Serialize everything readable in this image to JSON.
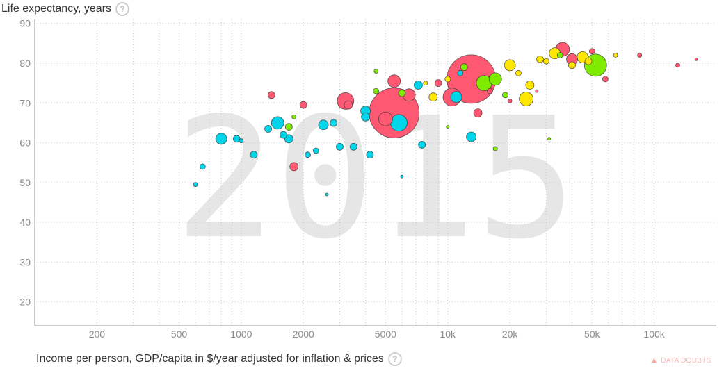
{
  "y_axis": {
    "title": "Life expectancy, years",
    "help_icon": "question-circle-icon"
  },
  "x_axis": {
    "title": "Income per person, GDP/capita in $/year adjusted for inflation & prices",
    "help_icon": "question-circle-icon"
  },
  "data_doubts": {
    "label": "DATA DOUBTS",
    "icon": "warning-triangle-icon"
  },
  "chart_data": {
    "type": "scatter",
    "title": "",
    "year": "2015",
    "xlabel": "Income per person, GDP/capita in $/year adjusted for inflation & prices",
    "ylabel": "Life expectancy, years",
    "xscale": "log",
    "xlim": [
      100,
      200000
    ],
    "ylim": [
      14,
      91
    ],
    "x_ticks": [
      200,
      500,
      1000,
      2000,
      5000,
      10000,
      20000,
      50000,
      100000
    ],
    "x_tick_labels": [
      "200",
      "500",
      "1000",
      "2000",
      "5000",
      "10k",
      "20k",
      "50k",
      "100k"
    ],
    "y_ticks": [
      20,
      30,
      40,
      50,
      60,
      70,
      80,
      90
    ],
    "grid": true,
    "colors": {
      "cyan": "#00d5e9",
      "red": "#ff5872",
      "green": "#7feb00",
      "yellow": "#ffe700"
    },
    "points": [
      {
        "x": 5500,
        "y": 67.5,
        "r": 36,
        "color": "#ff5872"
      },
      {
        "x": 13000,
        "y": 76,
        "r": 35,
        "color": "#ff5872"
      },
      {
        "x": 52000,
        "y": 79.5,
        "r": 16,
        "color": "#7feb00"
      },
      {
        "x": 5800,
        "y": 65,
        "r": 12,
        "color": "#00d5e9"
      },
      {
        "x": 3200,
        "y": 70.5,
        "r": 12,
        "color": "#ff5872"
      },
      {
        "x": 10500,
        "y": 71.5,
        "r": 13,
        "color": "#ff5872"
      },
      {
        "x": 24000,
        "y": 71,
        "r": 10,
        "color": "#ffe700"
      },
      {
        "x": 36000,
        "y": 83.5,
        "r": 10,
        "color": "#ff5872"
      },
      {
        "x": 15000,
        "y": 75,
        "r": 11,
        "color": "#7feb00"
      },
      {
        "x": 5000,
        "y": 66,
        "r": 10,
        "color": "#ff5872"
      },
      {
        "x": 5500,
        "y": 75.5,
        "r": 9,
        "color": "#ff5872"
      },
      {
        "x": 6500,
        "y": 72,
        "r": 9,
        "color": "#ff5872"
      },
      {
        "x": 11000,
        "y": 71.5,
        "r": 8,
        "color": "#00d5e9"
      },
      {
        "x": 1500,
        "y": 65,
        "r": 9,
        "color": "#00d5e9"
      },
      {
        "x": 800,
        "y": 61,
        "r": 8,
        "color": "#00d5e9"
      },
      {
        "x": 17000,
        "y": 76,
        "r": 9,
        "color": "#7feb00"
      },
      {
        "x": 20000,
        "y": 79.5,
        "r": 8,
        "color": "#ffe700"
      },
      {
        "x": 33000,
        "y": 82.5,
        "r": 8,
        "color": "#ffe700"
      },
      {
        "x": 45000,
        "y": 81.5,
        "r": 8,
        "color": "#ffe700"
      },
      {
        "x": 40000,
        "y": 81,
        "r": 8,
        "color": "#ff5872"
      },
      {
        "x": 13000,
        "y": 61.5,
        "r": 7,
        "color": "#00d5e9"
      },
      {
        "x": 2500,
        "y": 64.5,
        "r": 7,
        "color": "#00d5e9"
      },
      {
        "x": 4000,
        "y": 68,
        "r": 7,
        "color": "#00d5e9"
      },
      {
        "x": 4000,
        "y": 66.5,
        "r": 6,
        "color": "#00d5e9"
      },
      {
        "x": 3300,
        "y": 69.5,
        "r": 6,
        "color": "#ff5872"
      },
      {
        "x": 7200,
        "y": 74.5,
        "r": 6,
        "color": "#00d5e9"
      },
      {
        "x": 8500,
        "y": 71.5,
        "r": 6,
        "color": "#ffe700"
      },
      {
        "x": 1700,
        "y": 61,
        "r": 6,
        "color": "#00d5e9"
      },
      {
        "x": 1800,
        "y": 54,
        "r": 6,
        "color": "#ff5872"
      },
      {
        "x": 1150,
        "y": 57,
        "r": 5,
        "color": "#00d5e9"
      },
      {
        "x": 2000,
        "y": 69.5,
        "r": 5,
        "color": "#ff5872"
      },
      {
        "x": 1400,
        "y": 72,
        "r": 5,
        "color": "#ff5872"
      },
      {
        "x": 3000,
        "y": 59,
        "r": 5,
        "color": "#00d5e9"
      },
      {
        "x": 3500,
        "y": 59,
        "r": 5,
        "color": "#00d5e9"
      },
      {
        "x": 2800,
        "y": 65,
        "r": 5,
        "color": "#00d5e9"
      },
      {
        "x": 4200,
        "y": 57,
        "r": 5,
        "color": "#00d5e9"
      },
      {
        "x": 7500,
        "y": 59.5,
        "r": 5,
        "color": "#00d5e9"
      },
      {
        "x": 25000,
        "y": 74.5,
        "r": 6,
        "color": "#ffe700"
      },
      {
        "x": 28000,
        "y": 81,
        "r": 5,
        "color": "#ffe700"
      },
      {
        "x": 14000,
        "y": 67.5,
        "r": 6,
        "color": "#ff5872"
      },
      {
        "x": 12000,
        "y": 79,
        "r": 5,
        "color": "#7feb00"
      },
      {
        "x": 40000,
        "y": 79.5,
        "r": 5,
        "color": "#ffe700"
      },
      {
        "x": 48000,
        "y": 80.5,
        "r": 5,
        "color": "#ffe700"
      },
      {
        "x": 58000,
        "y": 76,
        "r": 4,
        "color": "#ff5872"
      },
      {
        "x": 85000,
        "y": 82,
        "r": 3,
        "color": "#ff5872"
      },
      {
        "x": 130000,
        "y": 79.5,
        "r": 3,
        "color": "#ff5872"
      },
      {
        "x": 650,
        "y": 54,
        "r": 4,
        "color": "#00d5e9"
      },
      {
        "x": 600,
        "y": 49.5,
        "r": 3,
        "color": "#00d5e9"
      },
      {
        "x": 950,
        "y": 61,
        "r": 5,
        "color": "#00d5e9"
      },
      {
        "x": 1350,
        "y": 63.5,
        "r": 5,
        "color": "#00d5e9"
      },
      {
        "x": 1600,
        "y": 62,
        "r": 5,
        "color": "#00d5e9"
      },
      {
        "x": 2100,
        "y": 57,
        "r": 4,
        "color": "#00d5e9"
      },
      {
        "x": 2300,
        "y": 58,
        "r": 4,
        "color": "#00d5e9"
      },
      {
        "x": 1700,
        "y": 64,
        "r": 5,
        "color": "#7feb00"
      },
      {
        "x": 9000,
        "y": 75,
        "r": 5,
        "color": "#ff5872"
      },
      {
        "x": 6000,
        "y": 72.5,
        "r": 5,
        "color": "#7feb00"
      },
      {
        "x": 4500,
        "y": 73,
        "r": 4,
        "color": "#7feb00"
      },
      {
        "x": 10000,
        "y": 76,
        "r": 4,
        "color": "#ffe700"
      },
      {
        "x": 19000,
        "y": 72,
        "r": 4,
        "color": "#7feb00"
      },
      {
        "x": 22000,
        "y": 77.5,
        "r": 4,
        "color": "#ffe700"
      },
      {
        "x": 30000,
        "y": 80.5,
        "r": 4,
        "color": "#ffe700"
      },
      {
        "x": 35000,
        "y": 82,
        "r": 4,
        "color": "#7feb00"
      },
      {
        "x": 50000,
        "y": 83,
        "r": 4,
        "color": "#ff5872"
      },
      {
        "x": 16000,
        "y": 73,
        "r": 4,
        "color": "#ff5872"
      },
      {
        "x": 11500,
        "y": 77.5,
        "r": 4,
        "color": "#00d5e9"
      },
      {
        "x": 2600,
        "y": 47,
        "r": 2,
        "color": "#00d5e9"
      },
      {
        "x": 6000,
        "y": 51.5,
        "r": 2,
        "color": "#00d5e9"
      },
      {
        "x": 31000,
        "y": 61,
        "r": 2,
        "color": "#7feb00"
      },
      {
        "x": 17000,
        "y": 58.5,
        "r": 3,
        "color": "#7feb00"
      },
      {
        "x": 10000,
        "y": 64,
        "r": 2,
        "color": "#7feb00"
      },
      {
        "x": 1000,
        "y": 60.5,
        "r": 3,
        "color": "#00d5e9"
      },
      {
        "x": 1800,
        "y": 66.5,
        "r": 3,
        "color": "#7feb00"
      },
      {
        "x": 4500,
        "y": 78,
        "r": 3,
        "color": "#7feb00"
      },
      {
        "x": 7800,
        "y": 75,
        "r": 3,
        "color": "#ffe700"
      },
      {
        "x": 20000,
        "y": 70.5,
        "r": 3,
        "color": "#ff5872"
      },
      {
        "x": 27000,
        "y": 73,
        "r": 2,
        "color": "#ff5872"
      },
      {
        "x": 65000,
        "y": 82,
        "r": 3,
        "color": "#ffe700"
      },
      {
        "x": 160000,
        "y": 81,
        "r": 2,
        "color": "#ff5872"
      }
    ]
  }
}
